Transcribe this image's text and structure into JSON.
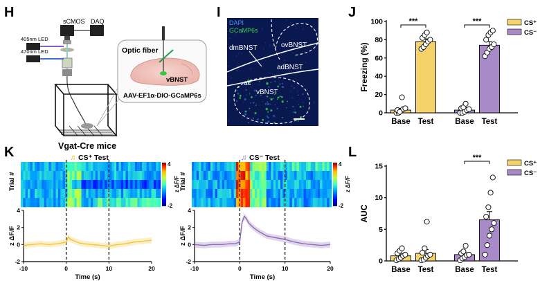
{
  "panels": {
    "H": {
      "label": "H",
      "camera": "sCMOS",
      "daq": "DAQ",
      "led1": "405nm LED",
      "led2": "470nm LED",
      "inset_title": "Optic fiber",
      "region": "vBNST",
      "virus": "AAV-EF1α-DIO-GCaMP6s",
      "mouse_line": "Vgat-Cre mice"
    },
    "I": {
      "label": "I",
      "stain1": "DAPI",
      "stain2": "GCaMP6s",
      "regions": [
        "dmBNST",
        "ovBNST",
        "adBNST",
        "ac",
        "vBNST"
      ]
    },
    "J": {
      "label": "J"
    },
    "K": {
      "label": "K",
      "left_title": "CS⁺ Test",
      "right_title": "CS⁻ Test",
      "heatmap_ylabel": "Trial #",
      "colorbar_label": "z ΔF/F",
      "colorbar_ticks": [
        "4",
        "-2"
      ],
      "trace_ylabel": "z ΔF/F",
      "trace_yticks": [
        "4",
        "2",
        "0",
        "-2"
      ],
      "xticks": [
        "-10",
        "0",
        "10",
        "20"
      ],
      "xlabel": "Time (s)"
    },
    "L": {
      "label": "L"
    }
  },
  "colors": {
    "cs_plus": "#f5d36a",
    "cs_minus": "#a98ac8",
    "cs_plus_line": "#f0c43a",
    "cs_minus_line": "#8d6bb5",
    "micro_bg": "#0a1850",
    "gcamp": "#35d04a",
    "dapi": "#4a90e0"
  },
  "chart_data": [
    {
      "type": "bar",
      "panel": "J",
      "ylabel": "Freezing (%)",
      "ylim": [
        0,
        100
      ],
      "yticks": [
        "0",
        "20",
        "40",
        "60",
        "80",
        "100"
      ],
      "categories": [
        "Base",
        "Test",
        "Base",
        "Test"
      ],
      "values": [
        3,
        78,
        3,
        74
      ],
      "bar_colors": [
        "cs_plus",
        "cs_plus",
        "cs_minus",
        "cs_minus"
      ],
      "errors": [
        2,
        3,
        2,
        4
      ],
      "points": [
        [
          0,
          0,
          2,
          4,
          5,
          3,
          1,
          17
        ],
        [
          70,
          72,
          75,
          78,
          80,
          82,
          85,
          88
        ],
        [
          0,
          0,
          1,
          3,
          4,
          5,
          6,
          10
        ],
        [
          62,
          66,
          70,
          72,
          75,
          80,
          85,
          88,
          90
        ]
      ],
      "legend": [
        "CS⁺",
        "CS⁻"
      ],
      "legend_position": "top-right",
      "significance": [
        "***",
        "***"
      ]
    },
    {
      "type": "bar",
      "panel": "L",
      "ylabel": "AUC",
      "ylim": [
        0,
        15
      ],
      "yticks": [
        "0",
        "5",
        "10",
        "15"
      ],
      "categories": [
        "Base",
        "Test",
        "Base",
        "Test"
      ],
      "values": [
        0.8,
        1.2,
        1.0,
        6.5
      ],
      "bar_colors": [
        "cs_plus",
        "cs_plus",
        "cs_minus",
        "cs_minus"
      ],
      "errors": [
        0.3,
        0.6,
        0.3,
        1.3
      ],
      "points": [
        [
          0.1,
          0.3,
          0.5,
          0.8,
          1.0,
          1.2,
          1.6,
          2.0
        ],
        [
          0.1,
          0.2,
          0.5,
          0.8,
          1.0,
          1.3,
          2.0,
          6.2
        ],
        [
          0.1,
          0.4,
          0.6,
          0.9,
          1.0,
          1.2,
          1.5,
          2.4
        ],
        [
          1.0,
          2.5,
          4.0,
          5.0,
          6.0,
          7.0,
          8.5,
          10.8,
          13.2
        ]
      ],
      "legend": [
        "CS⁺",
        "CS⁻"
      ],
      "legend_position": "top-right",
      "significance": [
        "***"
      ]
    },
    {
      "type": "heatmap",
      "panel": "K-left",
      "rows": 5,
      "colorbar": [
        -2,
        4
      ]
    },
    {
      "type": "heatmap",
      "panel": "K-right",
      "rows": 5,
      "colorbar": [
        -2,
        4
      ]
    },
    {
      "type": "line",
      "panel": "K-left-trace",
      "xlim": [
        -10,
        20
      ],
      "ylim": [
        -2,
        4
      ],
      "x": [
        -10,
        -8,
        -6,
        -4,
        -2,
        -1,
        0,
        0.5,
        1,
        2,
        3,
        4,
        6,
        8,
        10,
        12,
        14,
        16,
        18,
        20
      ],
      "y": [
        -0.1,
        0.0,
        0.1,
        0.0,
        0.1,
        0.2,
        0.3,
        0.9,
        0.6,
        0.4,
        0.2,
        0.1,
        0.0,
        -0.1,
        -0.2,
        0.0,
        0.1,
        0.3,
        0.4,
        0.5
      ]
    },
    {
      "type": "line",
      "panel": "K-right-trace",
      "xlim": [
        -10,
        20
      ],
      "ylim": [
        -2,
        4
      ],
      "x": [
        -10,
        -8,
        -6,
        -4,
        -2,
        -1,
        0,
        0.5,
        1,
        1.5,
        2,
        3,
        4,
        5,
        6,
        8,
        10,
        12,
        14,
        16,
        18,
        20
      ],
      "y": [
        0.0,
        -0.1,
        0.0,
        0.0,
        0.1,
        0.1,
        0.3,
        2.6,
        3.3,
        3.0,
        2.5,
        2.0,
        1.6,
        1.3,
        1.0,
        0.8,
        0.6,
        0.3,
        0.1,
        0.0,
        -0.1,
        0.0
      ]
    }
  ]
}
